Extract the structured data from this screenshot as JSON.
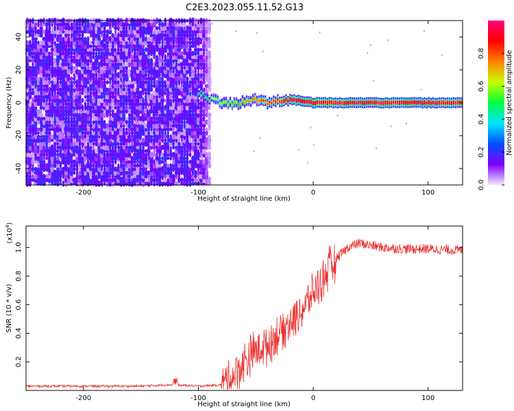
{
  "title": "C2E3.2023.055.11.52.G13",
  "chart_data": [
    {
      "type": "heatmap",
      "xlabel": "Height of straight line (km)",
      "ylabel": "Frequency (Hz)",
      "xlim": [
        -250,
        130
      ],
      "ylim": [
        -50,
        50
      ],
      "x_ticks": [
        -200,
        -100,
        0,
        100
      ],
      "y_ticks": [
        40,
        20,
        0,
        -20,
        -40
      ],
      "colorbar": {
        "label": "Normalized spectral amplitude",
        "range": [
          0.0,
          1.0
        ],
        "ticks": [
          "0.0",
          "0.2",
          "0.4",
          "0.6",
          "0.8"
        ],
        "colors": [
          "#f2e6ff",
          "#7d00ff",
          "#0050ff",
          "#00e5ff",
          "#00ff40",
          "#c8ff00",
          "#ff8000",
          "#ff0000",
          "#ff0080"
        ]
      },
      "ridge": {
        "x": [
          -100,
          -90,
          -80,
          -70,
          -60,
          -50,
          -40,
          -30,
          -20,
          -10,
          0,
          130
        ],
        "freq_hz": [
          6,
          2,
          0,
          -1,
          1,
          2,
          0,
          1,
          2,
          1,
          0,
          0
        ]
      }
    },
    {
      "type": "line",
      "xlabel": "Height of straight line (km)",
      "ylabel": "SNR (10 * v/v)",
      "y_scale_label": "(x10",
      "y_scale_exp": "4",
      "y_scale_close": ")",
      "xlim": [
        -250,
        130
      ],
      "ylim": [
        0,
        1.15
      ],
      "x_ticks": [
        -200,
        -100,
        0,
        100
      ],
      "y_ticks": [
        "0.2",
        "0.4",
        "0.6",
        "0.8",
        "1.0"
      ],
      "color": "#e8302e",
      "series": [
        {
          "x": [
            -250,
            -200,
            -150,
            -125,
            -100,
            -80,
            -70,
            -60,
            -50,
            -40,
            -30,
            -20,
            -10,
            0,
            10,
            20,
            30,
            40,
            60,
            80,
            100,
            130
          ],
          "values": [
            0.03,
            0.03,
            0.03,
            0.04,
            0.03,
            0.04,
            0.1,
            0.2,
            0.28,
            0.32,
            0.4,
            0.48,
            0.56,
            0.68,
            0.8,
            0.92,
            1.0,
            1.03,
            1.0,
            0.99,
            0.99,
            0.98
          ]
        }
      ]
    }
  ]
}
